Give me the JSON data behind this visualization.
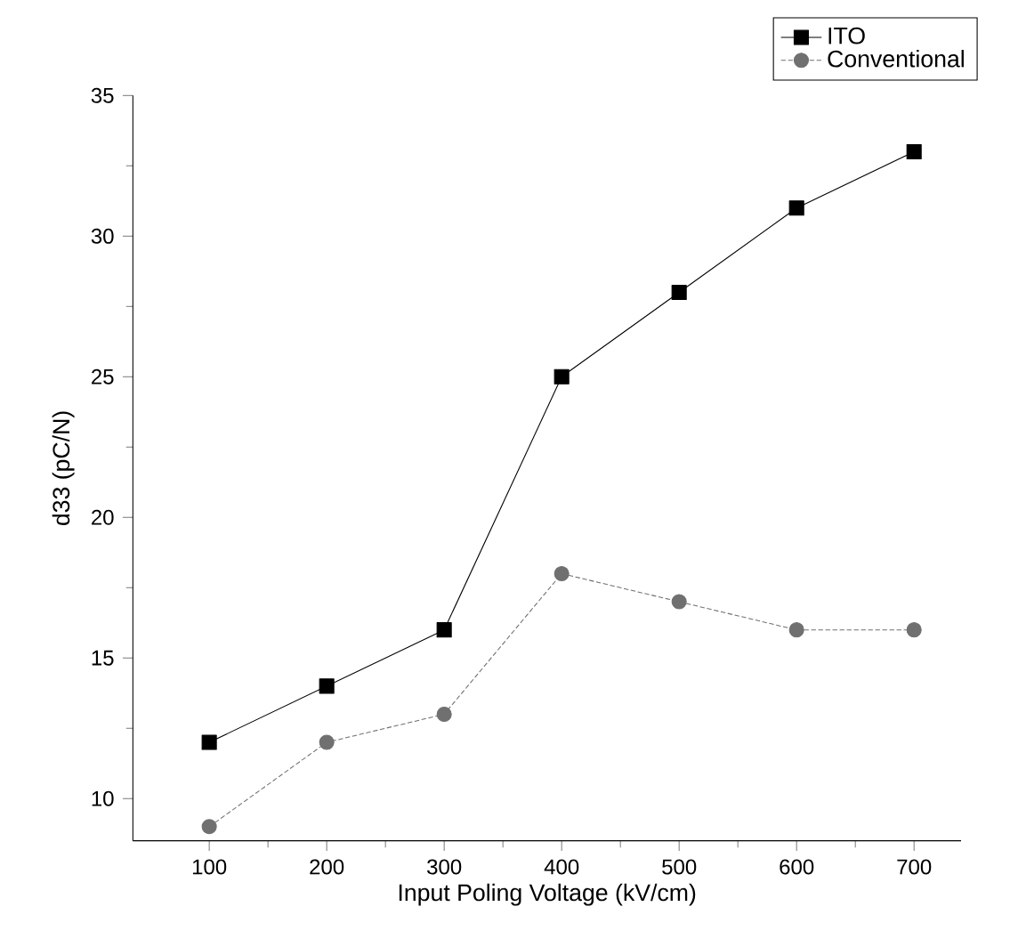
{
  "chart_data": {
    "type": "line",
    "xlabel": "Input Poling Voltage (kV/cm)",
    "ylabel": "d33 (pC/N)",
    "x": [
      100,
      200,
      300,
      400,
      500,
      600,
      700
    ],
    "series": [
      {
        "name": "ITO",
        "color": "#000000",
        "marker": "square",
        "line_style": "solid",
        "values": [
          12,
          14,
          16,
          25,
          28,
          31,
          33
        ]
      },
      {
        "name": "Conventional",
        "color": "#707070",
        "marker": "circle",
        "line_style": "dotted",
        "values": [
          9,
          12,
          13,
          18,
          17,
          16,
          16
        ]
      }
    ],
    "xlim": [
      35,
      740
    ],
    "ylim": [
      8.5,
      35
    ],
    "xticks": [
      100,
      200,
      300,
      400,
      500,
      600,
      700
    ],
    "yticks": [
      10,
      15,
      20,
      25,
      30,
      35
    ],
    "grid": false,
    "legend": "top right"
  }
}
